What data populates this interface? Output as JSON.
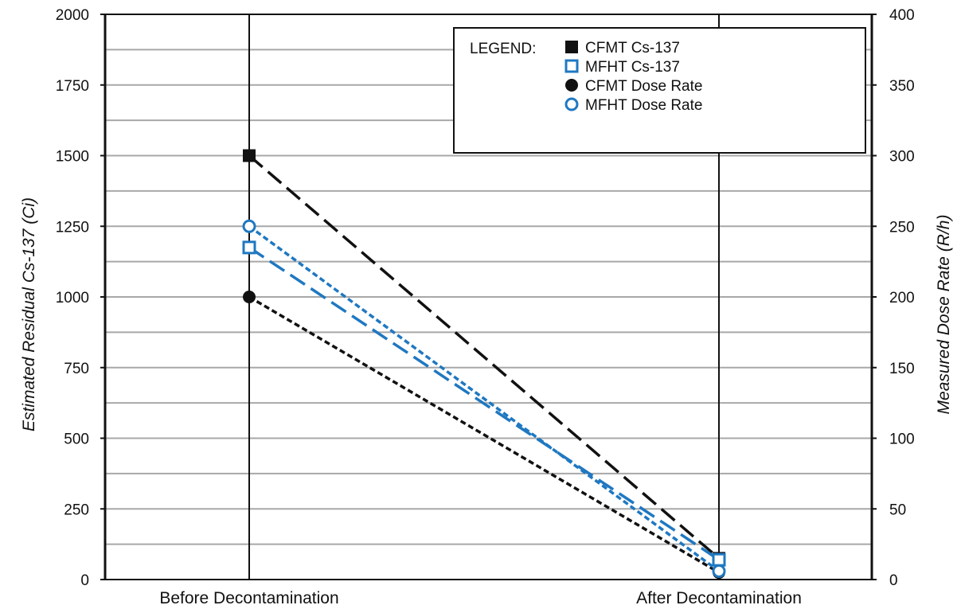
{
  "chart_data": {
    "type": "line",
    "categories": [
      "Before Decontamination",
      "After Decontamination"
    ],
    "ylabel": "Estimated Residual Cs-137 (Ci)",
    "y2label": "Measured Dose Rate (R/h)",
    "ylim": [
      0,
      2000
    ],
    "y2lim": [
      0,
      400
    ],
    "yticks": [
      "0",
      "250",
      "500",
      "750",
      "1000",
      "1250",
      "1500",
      "1750",
      "2000"
    ],
    "y2ticks": [
      "0",
      "50",
      "100",
      "150",
      "200",
      "250",
      "300",
      "350",
      "400"
    ],
    "grid": true,
    "legend_position": "top-right",
    "legend_title": "LEGEND:",
    "series": [
      {
        "name": "CFMT Cs-137",
        "axis": "left",
        "values": [
          1500,
          75
        ],
        "color": "#111111",
        "marker": "square-filled",
        "dash": "long"
      },
      {
        "name": "MFHT Cs-137",
        "axis": "left",
        "values": [
          1175,
          70
        ],
        "color": "#1f78c1",
        "marker": "square-open",
        "dash": "long"
      },
      {
        "name": "CFMT Dose Rate",
        "axis": "right",
        "values": [
          200,
          5
        ],
        "color": "#111111",
        "marker": "circle-filled",
        "dash": "short"
      },
      {
        "name": "MFHT Dose Rate",
        "axis": "right",
        "values": [
          250,
          6
        ],
        "color": "#1f78c1",
        "marker": "circle-open",
        "dash": "short"
      }
    ]
  }
}
